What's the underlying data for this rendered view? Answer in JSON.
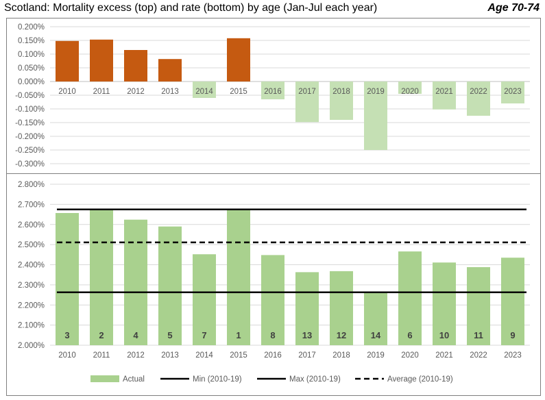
{
  "header": {
    "title": "Scotland: Mortality excess (top) and rate (bottom) by age (Jan-Jul each year)",
    "subtitle": "Age 70-74"
  },
  "colors": {
    "positive_bar": "#c55a11",
    "negative_bar": "#c5e0b4",
    "rate_bar": "#a9d18e",
    "reference_line": "#000000",
    "gridline": "#d9d9d9",
    "axis_text": "#595959"
  },
  "chart_data": [
    {
      "type": "bar",
      "title": "",
      "categories": [
        "2010",
        "2011",
        "2012",
        "2013",
        "2014",
        "2015",
        "2016",
        "2017",
        "2018",
        "2019",
        "2020",
        "2021",
        "2022",
        "2023"
      ],
      "series": [
        {
          "values": [
            0.148,
            0.153,
            0.115,
            0.082,
            -0.06,
            0.158,
            -0.065,
            -0.148,
            -0.14,
            -0.25,
            -0.045,
            -0.102,
            -0.125,
            -0.08
          ]
        }
      ],
      "value_unit": "%",
      "ylim": [
        -0.3,
        0.2
      ],
      "yticks": [
        "0.200%",
        "0.150%",
        "0.100%",
        "0.050%",
        "0.000%",
        "-0.050%",
        "-0.100%",
        "-0.150%",
        "-0.200%",
        "-0.250%",
        "-0.300%"
      ],
      "grid": true,
      "colors": {
        "positive": "#c55a11",
        "negative": "#c5e0b4"
      }
    },
    {
      "type": "bar",
      "title": "",
      "categories": [
        "2010",
        "2011",
        "2012",
        "2013",
        "2014",
        "2015",
        "2016",
        "2017",
        "2018",
        "2019",
        "2020",
        "2021",
        "2022",
        "2023"
      ],
      "series": [
        {
          "name": "Actual",
          "values": [
            2.657,
            2.675,
            2.624,
            2.59,
            2.452,
            2.675,
            2.448,
            2.363,
            2.368,
            2.263,
            2.466,
            2.411,
            2.388,
            2.435
          ]
        }
      ],
      "rank_labels": [
        "3",
        "2",
        "4",
        "5",
        "7",
        "1",
        "8",
        "13",
        "12",
        "14",
        "6",
        "10",
        "11",
        "9"
      ],
      "reference_lines": [
        {
          "name": "Min (2010-19)",
          "value": 2.263,
          "style": "solid"
        },
        {
          "name": "Max (2010-19)",
          "value": 2.675,
          "style": "solid"
        },
        {
          "name": "Average (2010-19)",
          "value": 2.511,
          "style": "dashed"
        }
      ],
      "value_unit": "%",
      "ylim": [
        2.0,
        2.8
      ],
      "yticks": [
        "2.800%",
        "2.700%",
        "2.600%",
        "2.500%",
        "2.400%",
        "2.300%",
        "2.200%",
        "2.100%",
        "2.000%"
      ],
      "grid": true,
      "legend_position": "bottom",
      "legend": [
        "Actual",
        "Min (2010-19)",
        "Max (2010-19)",
        "Average (2010-19)"
      ]
    }
  ]
}
